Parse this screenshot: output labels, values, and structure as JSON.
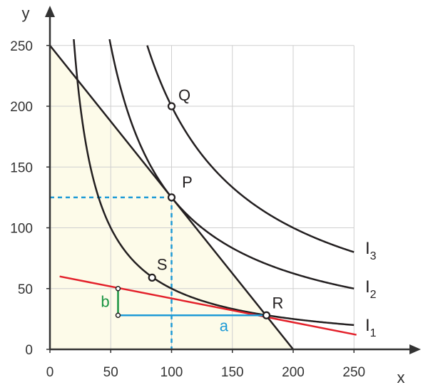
{
  "chart_data": {
    "type": "line",
    "xlabel": "x",
    "ylabel": "y",
    "xlim": [
      0,
      250
    ],
    "ylim": [
      0,
      250
    ],
    "x_ticks": [
      0,
      50,
      100,
      150,
      200,
      250
    ],
    "y_ticks": [
      0,
      50,
      100,
      150,
      200,
      250
    ],
    "x_tick_labels": [
      "0",
      "50",
      "100",
      "150",
      "200",
      "250"
    ],
    "y_tick_labels": [
      "0",
      "50",
      "100",
      "150",
      "200",
      "250"
    ],
    "grid": true,
    "budget_region": {
      "x_intercept": 200,
      "y_intercept": 250
    },
    "budget_line": {
      "x0": 0,
      "y0": 250,
      "x1": 200,
      "y1": 0
    },
    "indifference_curves": [
      {
        "name": "I_1",
        "label_main": "I",
        "label_sub": "1",
        "k": 5000,
        "x_range": [
          17,
          250
        ]
      },
      {
        "name": "I_2",
        "label_main": "I",
        "label_sub": "2",
        "k": 12500,
        "x_range": [
          49,
          250
        ]
      },
      {
        "name": "I_3",
        "label_main": "I",
        "label_sub": "3",
        "k": 20000,
        "x_range": [
          80,
          250
        ]
      }
    ],
    "red_line": {
      "x0": 8,
      "y0": 60,
      "x1": 252,
      "y1": 12
    },
    "points": [
      {
        "name": "Q",
        "x": 100,
        "y": 200
      },
      {
        "name": "P",
        "x": 100,
        "y": 125
      },
      {
        "name": "S",
        "x": 84,
        "y": 59
      },
      {
        "name": "R",
        "x": 178,
        "y": 28
      }
    ],
    "dashed_guides": {
      "x": 100,
      "y": 125
    },
    "segment_a": {
      "label": "a",
      "x0": 56,
      "x1": 178,
      "y": 28
    },
    "segment_b": {
      "label": "b",
      "x": 56,
      "y0": 28,
      "y1": 50
    }
  },
  "colors": {
    "axis": "#333333",
    "grid": "#cfcfcf",
    "region_fill": "#fdfbe9",
    "curve": "#231f20",
    "red_line": "#e3202a",
    "segment_a": "#1d9ad6",
    "segment_b": "#1a9442",
    "dashed": "#1d9ad6"
  }
}
